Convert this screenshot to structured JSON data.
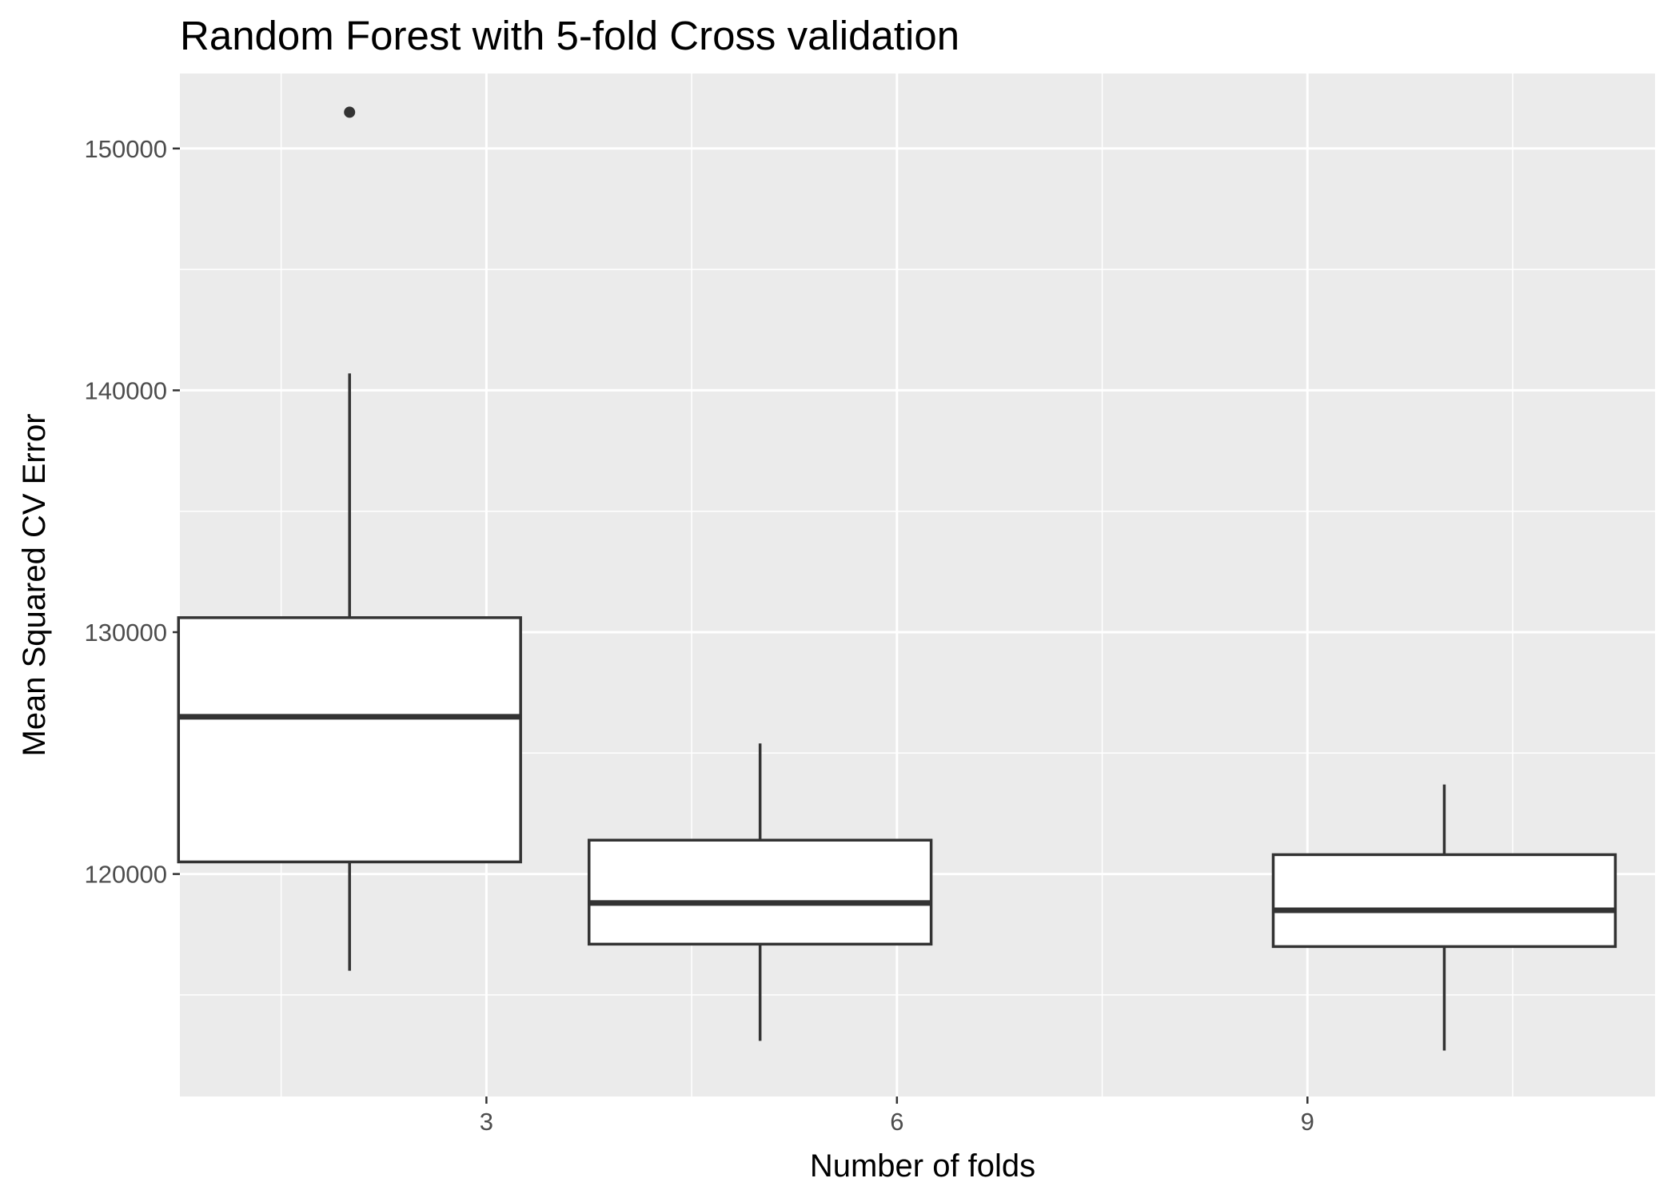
{
  "chart_data": {
    "type": "box",
    "title": "Random Forest with 5-fold Cross validation",
    "xlabel": "Number of folds",
    "ylabel": "Mean Squared CV Error",
    "xlim": [
      0.76,
      11.54
    ],
    "ylim": [
      110800,
      153100
    ],
    "x_ticks": [
      3,
      6,
      9
    ],
    "x_minor": [
      1.5,
      4.5,
      7.5,
      10.5
    ],
    "y_ticks": [
      120000,
      130000,
      140000,
      150000
    ],
    "y_minor": [
      115000,
      125000,
      135000,
      145000
    ],
    "grid": true,
    "background": "#ebebeb",
    "boxes": [
      {
        "x": 2,
        "lower_whisker": 116000,
        "q1": 120500,
        "median": 126500,
        "q3": 130600,
        "upper_whisker": 140700,
        "outliers": [
          151500
        ]
      },
      {
        "x": 5,
        "lower_whisker": 113100,
        "q1": 117100,
        "median": 118800,
        "q3": 121400,
        "upper_whisker": 125400,
        "outliers": []
      },
      {
        "x": 10,
        "lower_whisker": 112700,
        "q1": 117000,
        "median": 118500,
        "q3": 120800,
        "upper_whisker": 123700,
        "outliers": []
      }
    ]
  }
}
